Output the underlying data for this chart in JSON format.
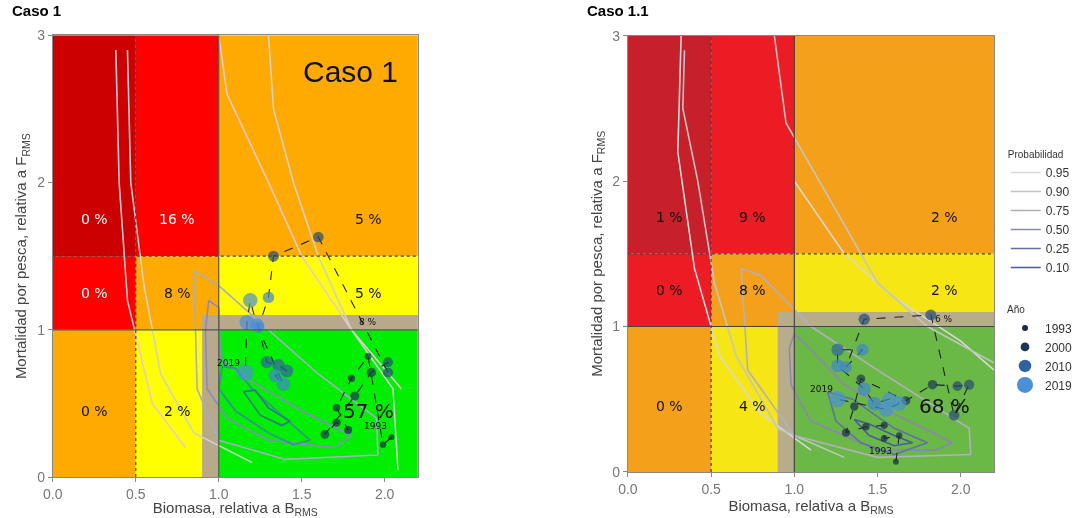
{
  "chart_data": [
    {
      "type": "bubble",
      "title": "Caso 1",
      "xlabel": "Biomasa, relativa a B$_{RMS}$",
      "ylabel": "Mortalidad por pesca, relativa a F$_{RMS}$",
      "xlim": [
        0,
        2.2
      ],
      "ylim": [
        0,
        3
      ],
      "xticks": [
        {
          "value": 0,
          "label": "0.0"
        },
        {
          "value": 0.5,
          "label": "0.5"
        },
        {
          "value": 1,
          "label": "1.0"
        },
        {
          "value": 1.5,
          "label": "1.5"
        },
        {
          "value": 2,
          "label": "2.0"
        }
      ],
      "yticks": [
        0,
        1,
        2,
        3
      ],
      "legend": false,
      "bands": [
        {
          "axis": "x",
          "from": 0.9,
          "to": 1.0,
          "color": "#b8a98a"
        },
        {
          "axis": "y",
          "from": 1.0,
          "to": 1.1,
          "color": "#b8a98a"
        }
      ],
      "ref_lines": [
        {
          "axis": "x",
          "value": 0.5,
          "line_style": "dotted",
          "color": "#444444"
        },
        {
          "axis": "x",
          "value": 1,
          "line_style": "solid",
          "color": "#555555"
        },
        {
          "axis": "y",
          "value": 1,
          "line_style": "solid",
          "color": "#555555"
        },
        {
          "axis": "y",
          "value": 1.5,
          "line_style": "dotted",
          "color": "#444444"
        }
      ],
      "annotations": [
        "0 %",
        "16 %",
        "5 %",
        "0 %",
        "8 %",
        "5 %",
        "8 %",
        "0 %",
        "2 %",
        "57 %",
        "Caso 1",
        {
          "text": "2019",
          "x": 1.16,
          "y": 0.71
        },
        {
          "text": "1993",
          "x": 2.04,
          "y": 0.27
        }
      ],
      "series": [
        {
          "type": "line",
          "color": "#e8c8d0",
          "x": [
            0.38,
            0.4,
            0.45,
            0.6,
            0.8,
            null,
            1.0,
            1.05,
            1.3,
            1.5,
            1.8,
            2.1
          ],
          "values": [
            2.9,
            2.0,
            1.2,
            0.5,
            0.2,
            null,
            3.0,
            2.6,
            2.0,
            1.5,
            1.0,
            0.6
          ]
        },
        {
          "type": "line",
          "color": "#d0d0d0",
          "x": [
            0.45,
            0.47,
            0.55,
            0.65,
            0.85,
            1.2,
            null,
            1.3,
            1.33,
            1.45,
            1.6,
            1.8,
            2.05,
            2.08
          ],
          "values": [
            2.9,
            2.0,
            1.3,
            0.7,
            0.3,
            0.1,
            null,
            3.0,
            2.5,
            2.0,
            1.5,
            1.0,
            0.6,
            0.05
          ]
        },
        {
          "type": "line",
          "color": "#a8acc4",
          "x": [
            0.85,
            1.0,
            1.3,
            1.6,
            1.95,
            1.96,
            null,
            0.85,
            0.87,
            1.0,
            1.4,
            1.96
          ],
          "values": [
            1.4,
            1.3,
            1.0,
            0.7,
            0.4,
            0.15,
            null,
            1.4,
            0.6,
            0.25,
            0.12,
            0.15
          ]
        },
        {
          "type": "line",
          "color": "#8c88c8",
          "x": [
            0.92,
            0.94,
            1.0,
            1.01,
            1.2,
            1.5,
            1.8,
            null,
            0.92,
            0.93,
            1.05,
            1.3,
            1.7,
            1.8
          ],
          "values": [
            1.0,
            1.2,
            1.15,
            0.8,
            0.65,
            0.45,
            0.28,
            null,
            1.0,
            0.6,
            0.4,
            0.25,
            0.2,
            0.28
          ]
        },
        {
          "type": "line",
          "color": "#3a8aa0",
          "x": [
            1.0,
            1.02,
            1.1,
            1.2,
            1.35,
            1.55,
            null,
            1.0,
            1.1,
            1.3,
            1.45,
            1.55
          ],
          "values": [
            0.6,
            0.75,
            0.74,
            0.6,
            0.45,
            0.25,
            null,
            0.6,
            0.45,
            0.3,
            0.22,
            0.25
          ]
        },
        {
          "type": "line",
          "color": "#2a7a8a",
          "x": [
            1.15,
            1.22,
            1.3,
            1.43,
            null,
            1.15,
            1.25,
            1.38,
            1.43
          ],
          "values": [
            0.58,
            0.59,
            0.47,
            0.38,
            null,
            0.58,
            0.42,
            0.35,
            0.38
          ]
        },
        {
          "type": "line",
          "color": "#222222",
          "line_style": "dashed",
          "x": [
            2.04,
            1.99,
            1.9,
            1.8,
            1.71,
            1.78,
            1.71,
            1.64,
            1.82,
            1.92,
            2.02,
            2.02,
            1.6,
            1.33,
            1.3,
            1.24,
            1.29,
            1.36,
            1.41,
            1.34,
            1.39,
            1.23,
            1.19,
            1.17,
            1.16
          ],
          "values": [
            0.27,
            0.22,
            0.82,
            0.67,
            0.47,
            0.32,
            0.37,
            0.29,
            0.55,
            0.71,
            0.78,
            0.71,
            1.63,
            1.5,
            1.22,
            1.02,
            0.78,
            0.76,
            0.72,
            0.69,
            0.63,
            1.03,
            1.2,
            1.05,
            0.71
          ]
        },
        {
          "color": "#222222",
          "x": [
            2.04,
            1.99,
            1.9,
            1.8,
            1.71,
            1.78,
            1.71,
            1.64,
            1.82,
            1.92,
            2.02,
            2.02,
            1.6,
            1.33,
            1.3,
            1.24,
            1.29,
            1.36,
            1.41,
            1.34,
            1.39,
            1.23,
            1.19,
            1.17,
            1.16
          ],
          "values": [
            0.27,
            0.22,
            0.82,
            0.67,
            0.47,
            0.32,
            0.37,
            0.29,
            0.55,
            0.71,
            0.78,
            0.71,
            1.63,
            1.5,
            1.22,
            1.02,
            0.78,
            0.76,
            0.72,
            0.69,
            0.63,
            1.03,
            1.2,
            1.05,
            0.71
          ],
          "sizes": [
            0.14,
            0.16,
            0.18,
            0.2,
            0.22,
            0.25,
            0.27,
            0.3,
            0.32,
            0.35,
            0.38,
            0.41,
            0.44,
            0.47,
            0.51,
            0.54,
            0.58,
            0.61,
            0.65,
            0.69,
            0.73,
            0.77,
            0.82,
            0.86,
            1
          ],
          "colors": [
            "#1b2a4a",
            "#1b2a4a",
            "#1b2a4a",
            "#1b2a4a",
            "#1b2a4a",
            "#1b2a4a",
            "#1b2a4a",
            "#1f3556",
            "#1f3556",
            "#1f3556",
            "#264a7a",
            "#264a7a",
            "#264a7a",
            "#264a7a",
            "#3f86d0",
            "#3f86d0",
            "#2f62a0",
            "#2f62a0",
            "#2f62a0",
            "#3f86d0",
            "#3f86d0",
            "#4a90d8",
            "#4a90d8",
            "#4a90d8",
            "#4a90d8"
          ]
        }
      ]
    },
    {
      "type": "bubble",
      "title": "Caso 1.1",
      "xlabel": "Biomasa, relativa a B$_{RMS}$",
      "ylabel": "Mortalidad por pesca, relativa a F$_{RMS}$",
      "xlim": [
        0,
        2.2
      ],
      "ylim": [
        0,
        3
      ],
      "xticks": [
        {
          "value": 0,
          "label": "0.0"
        },
        {
          "value": 0.5,
          "label": "0.5"
        },
        {
          "value": 1,
          "label": "1.0"
        },
        {
          "value": 1.5,
          "label": "1.5"
        },
        {
          "value": 2,
          "label": "2.0"
        }
      ],
      "yticks": [
        0,
        1,
        2,
        3
      ],
      "legend": "right",
      "legend_title": [
        "Probabilidad",
        "Año"
      ],
      "size_legend": [
        {
          "value": 0.14,
          "label": "1993"
        },
        {
          "value": 0.3,
          "label": "2000"
        },
        {
          "value": 0.61,
          "label": "2010"
        },
        {
          "value": 1,
          "label": "2019"
        }
      ],
      "bands": [
        {
          "axis": "x",
          "from": 0.9,
          "to": 1.0,
          "color": "#b8ad8a"
        },
        {
          "axis": "y",
          "from": 1.0,
          "to": 1.1,
          "color": "#b8ad8a"
        }
      ],
      "ref_lines": [
        {
          "axis": "x",
          "value": 0.5,
          "line_style": "dotted",
          "color": "#444444"
        },
        {
          "axis": "x",
          "value": 1,
          "line_style": "solid",
          "color": "#444444"
        },
        {
          "axis": "y",
          "value": 1,
          "line_style": "solid",
          "color": "#444444"
        },
        {
          "axis": "y",
          "value": 1.5,
          "line_style": "dotted",
          "color": "#444444"
        }
      ],
      "annotations": [
        "1 %",
        "9 %",
        "2 %",
        "0 %",
        "8 %",
        "2 %",
        "6 %",
        "0 %",
        "4 %",
        "68 %",
        {
          "text": "2019",
          "x": 1.26,
          "y": 0.5
        },
        {
          "text": "1993",
          "x": 1.61,
          "y": 0.07
        }
      ],
      "series": [
        {
          "type": "line",
          "name": "0.95",
          "color": "#d8d8d8",
          "x": [
            0.32,
            0.3,
            0.4,
            0.55,
            0.8,
            1.1,
            null,
            1.0,
            1.3,
            1.6,
            2.0,
            2.2
          ],
          "values": [
            3.0,
            2.2,
            1.4,
            0.8,
            0.4,
            0.15,
            null,
            2.0,
            1.5,
            1.2,
            0.9,
            0.7
          ]
        },
        {
          "type": "line",
          "name": "0.90",
          "color": "#c4c4c4",
          "x": [
            0.34,
            0.33,
            0.42,
            0.52,
            0.65,
            0.9,
            1.3,
            null,
            0.88,
            0.95,
            1.25,
            1.5,
            1.8,
            2.2
          ],
          "values": [
            2.9,
            2.5,
            2.0,
            1.3,
            0.8,
            0.3,
            0.1,
            null,
            3.0,
            2.4,
            1.8,
            1.3,
            1.0,
            0.75
          ]
        },
        {
          "type": "line",
          "name": "0.75",
          "color": "#b0b0c0",
          "x": [
            0.68,
            0.8,
            1.1,
            1.5,
            2.05,
            2.06,
            null,
            0.68,
            0.72,
            1.0,
            1.5,
            2.06
          ],
          "values": [
            1.4,
            1.35,
            1.0,
            0.7,
            0.3,
            0.12,
            null,
            1.4,
            0.7,
            0.25,
            0.1,
            0.12
          ]
        },
        {
          "type": "line",
          "name": "0.50",
          "color": "#8888b0",
          "x": [
            0.97,
            1.0,
            1.05,
            1.3,
            1.6,
            1.95,
            null,
            0.97,
            0.98,
            1.1,
            1.5,
            1.85,
            1.95
          ],
          "values": [
            0.85,
            0.95,
            0.9,
            0.6,
            0.4,
            0.2,
            null,
            0.85,
            0.6,
            0.35,
            0.15,
            0.15,
            0.2
          ]
        },
        {
          "type": "line",
          "name": "0.25",
          "color": "#6070a8",
          "x": [
            1.2,
            1.35,
            1.6,
            1.8,
            null,
            1.2,
            1.25,
            1.4,
            1.6,
            1.8
          ],
          "values": [
            0.55,
            0.5,
            0.3,
            0.2,
            null,
            0.55,
            0.35,
            0.2,
            0.12,
            0.2
          ]
        },
        {
          "type": "line",
          "name": "0.10",
          "color": "#4a5aa0",
          "x": [
            1.36,
            1.45,
            1.6,
            1.71,
            null,
            1.36,
            1.45,
            1.6,
            1.71
          ],
          "values": [
            0.36,
            0.33,
            0.25,
            0.2,
            null,
            0.36,
            0.25,
            0.18,
            0.2
          ]
        },
        {
          "type": "line",
          "color": "#222222",
          "line_style": "dashed",
          "x": [
            1.61,
            1.63,
            1.54,
            1.54,
            1.43,
            1.31,
            1.36,
            1.4,
            1.67,
            1.83,
            1.98,
            2.05,
            1.96,
            1.82,
            1.42,
            1.31,
            1.41,
            1.26,
            1.26,
            1.42,
            1.48,
            1.57,
            1.63,
            1.55,
            1.26
          ],
          "values": [
            0.07,
            0.25,
            0.23,
            0.32,
            0.31,
            0.27,
            0.45,
            0.64,
            0.49,
            0.6,
            0.59,
            0.6,
            0.39,
            1.08,
            1.05,
            0.72,
            0.84,
            0.84,
            0.73,
            0.57,
            0.47,
            0.5,
            0.47,
            0.43,
            0.5
          ]
        },
        {
          "color": "#222222",
          "x": [
            1.61,
            1.63,
            1.54,
            1.54,
            1.43,
            1.31,
            1.36,
            1.4,
            1.67,
            1.83,
            1.98,
            2.05,
            1.96,
            1.82,
            1.42,
            1.31,
            1.41,
            1.26,
            1.26,
            1.42,
            1.48,
            1.57,
            1.63,
            1.55,
            1.26
          ],
          "values": [
            0.07,
            0.25,
            0.23,
            0.32,
            0.31,
            0.27,
            0.45,
            0.64,
            0.49,
            0.6,
            0.59,
            0.6,
            0.39,
            1.08,
            1.05,
            0.72,
            0.84,
            0.84,
            0.73,
            0.57,
            0.47,
            0.5,
            0.47,
            0.43,
            0.5
          ],
          "sizes": [
            0.14,
            0.16,
            0.18,
            0.2,
            0.22,
            0.25,
            0.27,
            0.3,
            0.32,
            0.35,
            0.38,
            0.41,
            0.44,
            0.47,
            0.51,
            0.54,
            0.58,
            0.61,
            0.65,
            0.69,
            0.73,
            0.77,
            0.82,
            0.86,
            1
          ],
          "colors": [
            "#1b2a4a",
            "#1b2a4a",
            "#1b2a4a",
            "#1b2a4a",
            "#1b2a4a",
            "#1b2a4a",
            "#1b2a4a",
            "#1f3556",
            "#1f3556",
            "#1f3556",
            "#264a7a",
            "#264a7a",
            "#264a7a",
            "#264a7a",
            "#264a7a",
            "#3f86d0",
            "#3f86d0",
            "#2f62a0",
            "#3f86d0",
            "#3f86d0",
            "#3f86d0",
            "#4a90d8",
            "#4a90d8",
            "#4a90d8",
            "#4a90d8"
          ]
        }
      ]
    }
  ]
}
